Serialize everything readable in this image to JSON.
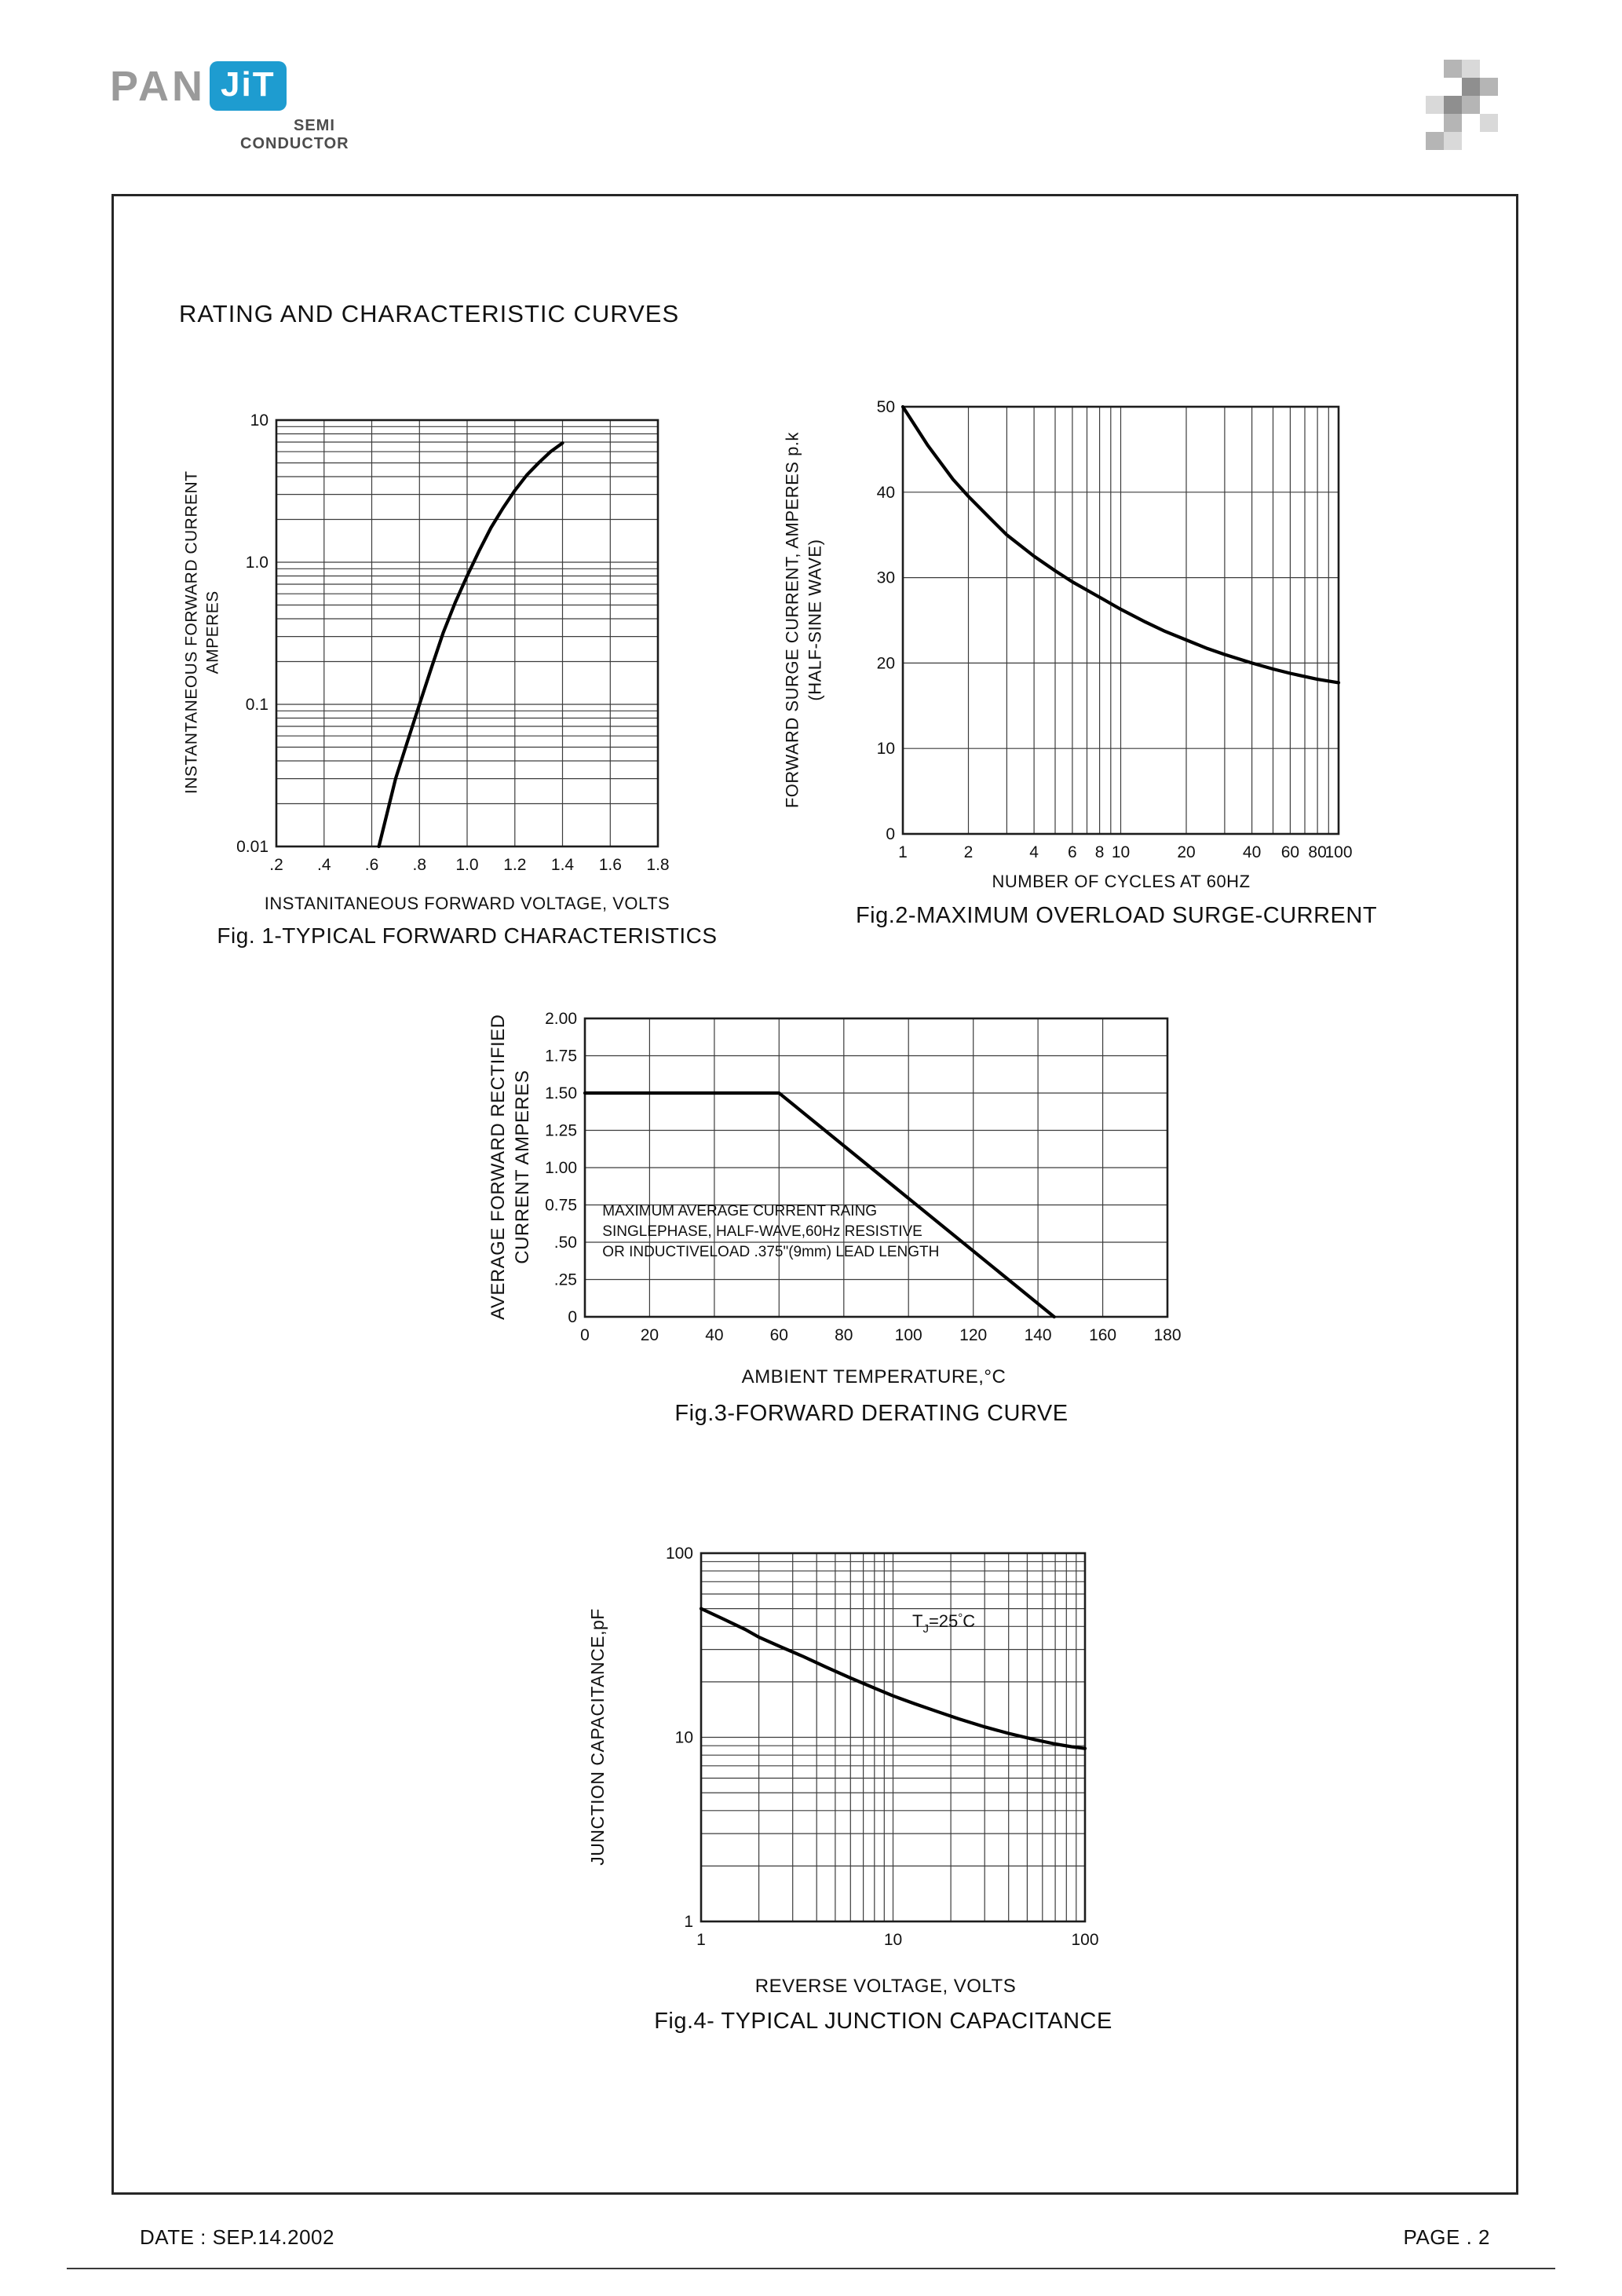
{
  "page": {
    "title": "RATING AND CHARACTERISTIC CURVES",
    "footer": {
      "date": "DATE : SEP.14.2002",
      "page": "PAGE . 2"
    }
  },
  "logo": {
    "pan": "PAN",
    "jit": "JiT",
    "semi": "SEMI",
    "conductor": "CONDUCTOR"
  },
  "chart_data": [
    {
      "id": "fig1",
      "type": "line",
      "caption": "Fig. 1-TYPICAL FORWARD CHARACTERISTICS",
      "xlabel": "INSTANITANEOUS FORWARD VOLTAGE, VOLTS",
      "ylabel_lines": [
        "INSTANTANEOUS FORWARD CURRENT",
        "AMPERES"
      ],
      "xscale": "linear",
      "xlim": [
        0.2,
        1.8
      ],
      "yscale": "log",
      "ylim": [
        0.01,
        10
      ],
      "xticks": [
        {
          "v": 0.2,
          "label": ".2"
        },
        {
          "v": 0.4,
          "label": ".4"
        },
        {
          "v": 0.6,
          "label": ".6"
        },
        {
          "v": 0.8,
          "label": ".8"
        },
        {
          "v": 1.0,
          "label": "1.0"
        },
        {
          "v": 1.2,
          "label": "1.2"
        },
        {
          "v": 1.4,
          "label": "1.4"
        },
        {
          "v": 1.6,
          "label": "1.6"
        },
        {
          "v": 1.8,
          "label": "1.8"
        }
      ],
      "yticks": [
        {
          "v": 10,
          "label": "10"
        },
        {
          "v": 1,
          "label": "1.0"
        },
        {
          "v": 0.1,
          "label": "0.1"
        },
        {
          "v": 0.01,
          "label": "0.01"
        }
      ],
      "series": [
        {
          "name": "typical forward characteristic",
          "points": [
            [
              0.63,
              0.01
            ],
            [
              0.66,
              0.016
            ],
            [
              0.7,
              0.03
            ],
            [
              0.75,
              0.055
            ],
            [
              0.8,
              0.1
            ],
            [
              0.85,
              0.18
            ],
            [
              0.9,
              0.32
            ],
            [
              0.95,
              0.52
            ],
            [
              1.0,
              0.8
            ],
            [
              1.05,
              1.2
            ],
            [
              1.1,
              1.75
            ],
            [
              1.15,
              2.4
            ],
            [
              1.2,
              3.2
            ],
            [
              1.25,
              4.1
            ],
            [
              1.3,
              5.0
            ],
            [
              1.35,
              6.0
            ],
            [
              1.4,
              6.9
            ]
          ]
        }
      ]
    },
    {
      "id": "fig2",
      "type": "line",
      "caption": "Fig.2-MAXIMUM OVERLOAD SURGE-CURRENT",
      "xlabel": "NUMBER OF CYCLES AT 60HZ",
      "ylabel_lines": [
        "FORWARD SURGE CURRENT, AMPERES p.k",
        "(HALF-SINE WAVE)"
      ],
      "xscale": "log",
      "xlim": [
        1,
        100
      ],
      "yscale": "linear",
      "ylim": [
        0,
        50
      ],
      "xticks": [
        {
          "v": 1,
          "label": "1"
        },
        {
          "v": 2,
          "label": "2"
        },
        {
          "v": 4,
          "label": "4"
        },
        {
          "v": 6,
          "label": "6"
        },
        {
          "v": 8,
          "label": "8"
        },
        {
          "v": 10,
          "label": "10"
        },
        {
          "v": 20,
          "label": "20"
        },
        {
          "v": 40,
          "label": "40"
        },
        {
          "v": 60,
          "label": "60"
        },
        {
          "v": 80,
          "label": "80"
        },
        {
          "v": 100,
          "label": "100"
        }
      ],
      "yticks": [
        {
          "v": 0,
          "label": "0"
        },
        {
          "v": 10,
          "label": "10"
        },
        {
          "v": 20,
          "label": "20"
        },
        {
          "v": 30,
          "label": "30"
        },
        {
          "v": 40,
          "label": "40"
        },
        {
          "v": 50,
          "label": "50"
        }
      ],
      "series": [
        {
          "name": "maximum overload surge current",
          "points": [
            [
              1,
              50
            ],
            [
              1.3,
              45.5
            ],
            [
              1.7,
              41.5
            ],
            [
              2,
              39.5
            ],
            [
              2.5,
              37
            ],
            [
              3,
              35
            ],
            [
              4,
              32.5
            ],
            [
              5,
              30.8
            ],
            [
              6,
              29.5
            ],
            [
              8,
              27.7
            ],
            [
              10,
              26.3
            ],
            [
              13,
              24.8
            ],
            [
              16,
              23.7
            ],
            [
              20,
              22.7
            ],
            [
              25,
              21.7
            ],
            [
              30,
              21
            ],
            [
              40,
              20
            ],
            [
              50,
              19.3
            ],
            [
              60,
              18.8
            ],
            [
              80,
              18.1
            ],
            [
              100,
              17.7
            ]
          ]
        }
      ]
    },
    {
      "id": "fig3",
      "type": "line",
      "caption": "Fig.3-FORWARD DERATING CURVE",
      "xlabel": "AMBIENT TEMPERATURE,°C",
      "ylabel_lines": [
        "AVERAGE FORWARD RECTIFIED",
        "CURRENT AMPERES"
      ],
      "xscale": "linear",
      "xlim": [
        0,
        180
      ],
      "yscale": "linear",
      "ylim": [
        0,
        2
      ],
      "xticks": [
        {
          "v": 0,
          "label": "0"
        },
        {
          "v": 20,
          "label": "20"
        },
        {
          "v": 40,
          "label": "40"
        },
        {
          "v": 60,
          "label": "60"
        },
        {
          "v": 80,
          "label": "80"
        },
        {
          "v": 100,
          "label": "100"
        },
        {
          "v": 120,
          "label": "120"
        },
        {
          "v": 140,
          "label": "140"
        },
        {
          "v": 160,
          "label": "160"
        },
        {
          "v": 180,
          "label": "180"
        }
      ],
      "yticks": [
        {
          "v": 0,
          "label": "0"
        },
        {
          "v": 0.25,
          "label": ".25"
        },
        {
          "v": 0.5,
          "label": ".50"
        },
        {
          "v": 0.75,
          "label": "0.75"
        },
        {
          "v": 1,
          "label": "1.00"
        },
        {
          "v": 1.25,
          "label": "1.25"
        },
        {
          "v": 1.5,
          "label": "1.50"
        },
        {
          "v": 1.75,
          "label": "1.75"
        },
        {
          "v": 2,
          "label": "2.00"
        }
      ],
      "annotations": [
        {
          "fx": 0.03,
          "fy": 0.66,
          "size": 19,
          "line_h": 26,
          "lines": [
            "MAXIMUM AVERAGE CURRENT RAING",
            "SINGLEPHASE, HALF-WAVE,60Hz RESISTIVE",
            "OR INDUCTIVELOAD .375\"(9mm) LEAD LENGTH"
          ]
        }
      ],
      "series": [
        {
          "name": "forward derating",
          "points": [
            [
              0,
              1.5
            ],
            [
              60,
              1.5
            ],
            [
              145,
              0
            ]
          ]
        }
      ]
    },
    {
      "id": "fig4",
      "type": "line",
      "caption": "Fig.4- TYPICAL JUNCTION CAPACITANCE",
      "xlabel": "REVERSE VOLTAGE, VOLTS",
      "ylabel_lines": [
        "JUNCTION CAPACITANCE,pF"
      ],
      "xscale": "log",
      "xlim": [
        1,
        100
      ],
      "yscale": "log",
      "ylim": [
        1,
        100
      ],
      "xticks": [
        {
          "v": 1,
          "label": "1"
        },
        {
          "v": 10,
          "label": "10"
        },
        {
          "v": 100,
          "label": "100"
        }
      ],
      "yticks": [
        {
          "v": 100,
          "label": "100"
        },
        {
          "v": 10,
          "label": "10"
        },
        {
          "v": 1,
          "label": "1"
        }
      ],
      "annotations": [
        {
          "fx": 0.55,
          "fy": 0.2,
          "size": 22,
          "line_h": 26,
          "lines": [
            {
              "parts": [
                {
                  "t": "T"
                },
                {
                  "t": "J",
                  "sub": true
                },
                {
                  "t": "=25"
                },
                {
                  "t": "°",
                  "sup": true
                },
                {
                  "t": "C"
                }
              ]
            }
          ]
        }
      ],
      "series": [
        {
          "name": "typical junction capacitance",
          "points": [
            [
              1,
              50
            ],
            [
              1.3,
              44
            ],
            [
              1.7,
              38.5
            ],
            [
              2,
              35
            ],
            [
              2.6,
              31
            ],
            [
              3.4,
              27.5
            ],
            [
              4.5,
              24
            ],
            [
              6,
              21
            ],
            [
              8,
              18.5
            ],
            [
              10,
              16.8
            ],
            [
              13,
              15.2
            ],
            [
              17,
              13.8
            ],
            [
              22,
              12.6
            ],
            [
              30,
              11.4
            ],
            [
              40,
              10.5
            ],
            [
              55,
              9.7
            ],
            [
              70,
              9.2
            ],
            [
              85,
              8.9
            ],
            [
              100,
              8.7
            ]
          ]
        }
      ]
    }
  ]
}
